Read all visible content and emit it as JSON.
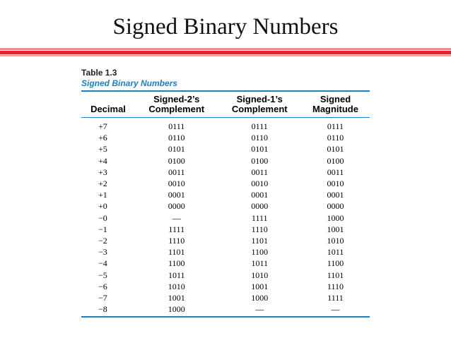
{
  "slide": {
    "title": "Signed Binary Numbers"
  },
  "table": {
    "caption_number": "Table 1.3",
    "caption_title": "Signed Binary Numbers",
    "headers": {
      "decimal": "Decimal",
      "twos_line1": "Signed-2’s",
      "twos_line2": "Complement",
      "ones_line1": "Signed-1’s",
      "ones_line2": "Complement",
      "mag_line1": "Signed",
      "mag_line2": "Magnitude"
    },
    "rows": [
      [
        "+7",
        "0111",
        "0111",
        "0111"
      ],
      [
        "+6",
        "0110",
        "0110",
        "0110"
      ],
      [
        "+5",
        "0101",
        "0101",
        "0101"
      ],
      [
        "+4",
        "0100",
        "0100",
        "0100"
      ],
      [
        "+3",
        "0011",
        "0011",
        "0011"
      ],
      [
        "+2",
        "0010",
        "0010",
        "0010"
      ],
      [
        "+1",
        "0001",
        "0001",
        "0001"
      ],
      [
        "+0",
        "0000",
        "0000",
        "0000"
      ],
      [
        "−0",
        "—",
        "1111",
        "1000"
      ],
      [
        "−1",
        "1111",
        "1110",
        "1001"
      ],
      [
        "−2",
        "1110",
        "1101",
        "1010"
      ],
      [
        "−3",
        "1101",
        "1100",
        "1011"
      ],
      [
        "−4",
        "1100",
        "1011",
        "1100"
      ],
      [
        "−5",
        "1011",
        "1010",
        "1101"
      ],
      [
        "−6",
        "1010",
        "1001",
        "1110"
      ],
      [
        "−7",
        "1001",
        "1000",
        "1111"
      ],
      [
        "−8",
        "1000",
        "—",
        "—"
      ]
    ]
  },
  "colors": {
    "accent_red": "#e8222a",
    "table_blue": "#1a7fc4"
  }
}
